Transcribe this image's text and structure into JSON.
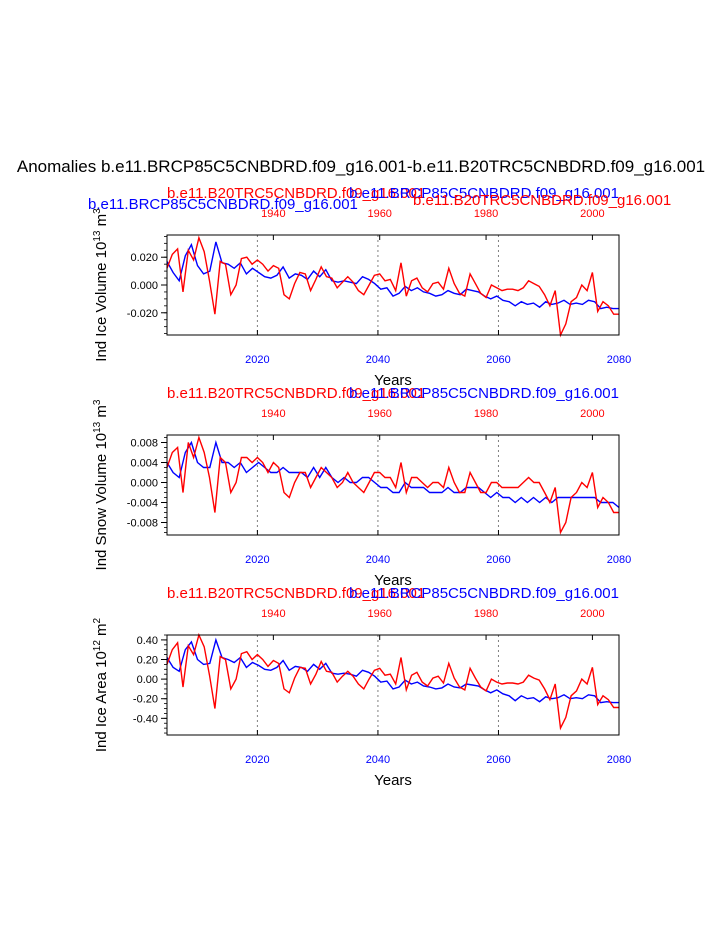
{
  "figure": {
    "main_title": "Anomalies b.e11.BRCP85C5CNBDRD.f09_g16.001-b.e11.B20TRC5CNBDRD.f09_g16.001",
    "colors": {
      "future": "#0000ff",
      "hist": "#ff0000",
      "axis": "#000000",
      "refline": "#808080"
    }
  },
  "chart_data": [
    {
      "type": "line",
      "title_left": "b.e11.BRCP85C5CNBDRD.f09_g16.001",
      "title_red_left": "b.e11.B20TRC5CNBDRD.f09_g16.001",
      "title_blue_right": "b.e11.BRCP85C5CNBDRD.f09_g16.001",
      "title_red_right": "b.e11.B20TRC5CNBDRD.f09_g16.001",
      "ylabel": "Ind Ice Volume 10^13 m^3",
      "ylabel_main": "Ind Ice Volume 10",
      "ylabel_exp": "13",
      "ylabel_unit": "m",
      "ylabel_unit_exp": "3",
      "xlabel": "Years",
      "ylim": [
        -0.036,
        0.036
      ],
      "yticks": [
        -0.02,
        0.0,
        0.02
      ],
      "ytick_labels": [
        "-0.020",
        "0.000",
        "0.020"
      ],
      "y_minor": 0.005,
      "x_future_lim": [
        2005,
        2080
      ],
      "x_future_ticks": [
        "2020",
        "2040",
        "2060",
        "2080"
      ],
      "x_hist_lim": [
        1920,
        2005
      ],
      "x_hist_ticks": [
        "1940",
        "1960",
        "1980",
        "2000"
      ],
      "reflines_future_years": [
        2020,
        2040,
        2060
      ],
      "series": [
        {
          "name": "b.e11.BRCP85C5CNBDRD.f09_g16.001",
          "x_axis": "future",
          "color": "#0000ff",
          "values": [
            0.017,
            0.009,
            0.003,
            0.021,
            0.029,
            0.014,
            0.008,
            0.01,
            0.031,
            0.016,
            0.015,
            0.012,
            0.016,
            0.008,
            0.012,
            0.009,
            0.006,
            0.005,
            0.007,
            0.013,
            0.005,
            0.008,
            0.007,
            0.004,
            0.01,
            0.006,
            0.011,
            0.003,
            0.002,
            0.003,
            0.002,
            0.001,
            0.006,
            0.004,
            0.001,
            -0.003,
            -0.002,
            -0.008,
            -0.006,
            -0.001,
            -0.004,
            -0.002,
            -0.005,
            -0.006,
            -0.008,
            -0.007,
            -0.004,
            -0.006,
            -0.007,
            -0.003,
            -0.004,
            -0.005,
            -0.008,
            -0.01,
            -0.008,
            -0.011,
            -0.012,
            -0.015,
            -0.012,
            -0.014,
            -0.013,
            -0.016,
            -0.012,
            -0.014,
            -0.013,
            -0.011,
            -0.014,
            -0.013,
            -0.014,
            -0.011,
            -0.012,
            -0.017,
            -0.016,
            -0.017,
            -0.017
          ]
        },
        {
          "name": "b.e11.B20TRC5CNBDRD.f09_g16.001",
          "x_axis": "hist",
          "color": "#ff0000",
          "values": [
            0.012,
            0.022,
            0.026,
            -0.005,
            0.025,
            0.018,
            0.034,
            0.024,
            0.003,
            -0.021,
            0.017,
            0.015,
            -0.007,
            0.0,
            0.019,
            0.02,
            0.015,
            0.018,
            0.015,
            0.01,
            0.014,
            0.012,
            -0.007,
            -0.01,
            0.001,
            0.009,
            0.008,
            -0.004,
            0.004,
            0.013,
            0.006,
            0.005,
            -0.002,
            0.002,
            0.006,
            0.002,
            -0.004,
            -0.007,
            0.0,
            0.007,
            0.008,
            0.003,
            0.004,
            -0.004,
            0.016,
            -0.008,
            0.003,
            0.005,
            -0.002,
            -0.005,
            0.001,
            0.002,
            -0.003,
            0.012,
            0.001,
            -0.006,
            -0.008,
            0.008,
            0.001,
            -0.006,
            -0.009,
            0.0,
            -0.002,
            -0.004,
            -0.003,
            -0.003,
            -0.004,
            -0.002,
            0.003,
            0.001,
            -0.001,
            -0.007,
            -0.015,
            -0.004,
            -0.036,
            -0.028,
            -0.012,
            -0.009,
            0.0,
            -0.004,
            0.009,
            -0.019,
            -0.012,
            -0.015,
            -0.021,
            -0.021
          ]
        }
      ]
    },
    {
      "type": "line",
      "title_red_left": "b.e11.B20TRC5CNBDRD.f09_g16.001",
      "title_blue_right": "b.e11.BRCP85C5CNBDRD.f09_g16.001",
      "ylabel": "Ind Snow Volume 10^13 m^3",
      "ylabel_main": "Ind Snow Volume 10",
      "ylabel_exp": "13",
      "ylabel_unit": "m",
      "ylabel_unit_exp": "3",
      "xlabel": "Years",
      "ylim": [
        -0.0105,
        0.0095
      ],
      "yticks": [
        -0.008,
        -0.004,
        0.0,
        0.004,
        0.008
      ],
      "ytick_labels": [
        "-0.008",
        "-0.004",
        "0.000",
        "0.004",
        "0.008"
      ],
      "y_minor": 0.001,
      "x_future_lim": [
        2005,
        2080
      ],
      "x_future_ticks": [
        "2020",
        "2040",
        "2060",
        "2080"
      ],
      "x_hist_lim": [
        1920,
        2005
      ],
      "x_hist_ticks": [
        "1940",
        "1960",
        "1980",
        "2000"
      ],
      "reflines_future_years": [
        2020,
        2040,
        2060
      ],
      "series": [
        {
          "name": "b.e11.BRCP85C5CNBDRD.f09_g16.001",
          "x_axis": "future",
          "color": "#0000ff",
          "values": [
            0.004,
            0.002,
            0.001,
            0.006,
            0.008,
            0.004,
            0.003,
            0.003,
            0.008,
            0.004,
            0.004,
            0.003,
            0.004,
            0.002,
            0.003,
            0.004,
            0.003,
            0.002,
            0.002,
            0.003,
            0.002,
            0.002,
            0.002,
            0.001,
            0.003,
            0.001,
            0.003,
            0.001,
            0.0,
            0.001,
            0.0,
            0.0,
            0.001,
            0.001,
            0.0,
            -0.001,
            -0.001,
            -0.002,
            -0.002,
            0.0,
            -0.001,
            -0.001,
            -0.001,
            -0.002,
            -0.002,
            -0.002,
            -0.001,
            -0.002,
            -0.002,
            -0.001,
            -0.001,
            -0.001,
            -0.002,
            -0.003,
            -0.002,
            -0.003,
            -0.003,
            -0.004,
            -0.003,
            -0.004,
            -0.003,
            -0.004,
            -0.003,
            -0.004,
            -0.003,
            -0.003,
            -0.003,
            -0.003,
            -0.003,
            -0.003,
            -0.003,
            -0.004,
            -0.004,
            -0.004,
            -0.005
          ]
        },
        {
          "name": "b.e11.B20TRC5CNBDRD.f09_g16.001",
          "x_axis": "hist",
          "color": "#ff0000",
          "values": [
            0.003,
            0.006,
            0.007,
            -0.002,
            0.008,
            0.005,
            0.009,
            0.006,
            0.001,
            -0.006,
            0.005,
            0.004,
            -0.002,
            0.0,
            0.005,
            0.005,
            0.004,
            0.005,
            0.004,
            0.002,
            0.004,
            0.003,
            -0.002,
            -0.003,
            0.0,
            0.002,
            0.002,
            -0.001,
            0.001,
            0.003,
            0.002,
            0.001,
            -0.001,
            0.0,
            0.002,
            0.0,
            -0.001,
            -0.002,
            0.0,
            0.002,
            0.002,
            0.001,
            0.001,
            -0.001,
            0.004,
            -0.002,
            0.001,
            0.001,
            0.0,
            -0.001,
            0.0,
            0.0,
            -0.001,
            0.003,
            0.0,
            -0.002,
            -0.002,
            0.002,
            0.0,
            -0.002,
            -0.002,
            0.0,
            0.0,
            -0.001,
            -0.001,
            -0.001,
            -0.001,
            0.0,
            0.001,
            0.0,
            0.0,
            -0.002,
            -0.004,
            -0.001,
            -0.01,
            -0.008,
            -0.003,
            -0.002,
            0.0,
            -0.001,
            0.002,
            -0.005,
            -0.003,
            -0.004,
            -0.006,
            -0.006
          ]
        }
      ]
    },
    {
      "type": "line",
      "title_red_left": "b.e11.B20TRC5CNBDRD.f09_g16.001",
      "title_blue_right": "b.e11.BRCP85C5CNBDRD.f09_g16.001",
      "ylabel": "Ind Ice Area 10^12 m^2",
      "ylabel_main": "Ind Ice Area 10",
      "ylabel_exp": "12",
      "ylabel_unit": "m",
      "ylabel_unit_exp": "2",
      "xlabel": "Years",
      "ylim": [
        -0.57,
        0.45
      ],
      "yticks": [
        -0.4,
        -0.2,
        0.0,
        0.2,
        0.4
      ],
      "ytick_labels": [
        "-0.40",
        "-0.20",
        "0.00",
        "0.20",
        "0.40"
      ],
      "y_minor": 0.05,
      "x_future_lim": [
        2005,
        2080
      ],
      "x_future_ticks": [
        "2020",
        "2040",
        "2060",
        "2080"
      ],
      "x_hist_lim": [
        1920,
        2005
      ],
      "x_hist_ticks": [
        "1940",
        "1960",
        "1980",
        "2000"
      ],
      "reflines_future_years": [
        2020,
        2040,
        2060
      ],
      "series": [
        {
          "name": "b.e11.BRCP85C5CNBDRD.f09_g16.001",
          "x_axis": "future",
          "color": "#0000ff",
          "values": [
            0.22,
            0.12,
            0.08,
            0.3,
            0.38,
            0.2,
            0.15,
            0.16,
            0.4,
            0.22,
            0.2,
            0.17,
            0.22,
            0.12,
            0.17,
            0.14,
            0.1,
            0.09,
            0.12,
            0.19,
            0.09,
            0.13,
            0.12,
            0.08,
            0.15,
            0.1,
            0.16,
            0.06,
            0.05,
            0.06,
            0.05,
            0.03,
            0.09,
            0.07,
            0.03,
            -0.03,
            -0.02,
            -0.1,
            -0.08,
            -0.01,
            -0.05,
            -0.03,
            -0.07,
            -0.08,
            -0.1,
            -0.09,
            -0.05,
            -0.08,
            -0.09,
            -0.05,
            -0.06,
            -0.07,
            -0.11,
            -0.14,
            -0.11,
            -0.15,
            -0.17,
            -0.22,
            -0.17,
            -0.2,
            -0.19,
            -0.23,
            -0.18,
            -0.2,
            -0.19,
            -0.16,
            -0.2,
            -0.19,
            -0.2,
            -0.16,
            -0.17,
            -0.24,
            -0.23,
            -0.24,
            -0.24
          ]
        },
        {
          "name": "b.e11.B20TRC5CNBDRD.f09_g16.001",
          "x_axis": "hist",
          "color": "#ff0000",
          "values": [
            0.15,
            0.3,
            0.37,
            -0.08,
            0.34,
            0.25,
            0.45,
            0.33,
            0.04,
            -0.3,
            0.23,
            0.2,
            -0.1,
            0.0,
            0.26,
            0.28,
            0.2,
            0.25,
            0.2,
            0.13,
            0.19,
            0.16,
            -0.1,
            -0.14,
            0.01,
            0.12,
            0.11,
            -0.05,
            0.05,
            0.18,
            0.08,
            0.07,
            -0.03,
            0.03,
            0.08,
            0.03,
            -0.05,
            -0.1,
            0.0,
            0.09,
            0.11,
            0.04,
            0.05,
            -0.05,
            0.22,
            -0.11,
            0.04,
            0.07,
            -0.03,
            -0.07,
            0.01,
            0.03,
            -0.04,
            0.16,
            0.01,
            -0.08,
            -0.11,
            0.11,
            0.01,
            -0.08,
            -0.12,
            0.0,
            -0.03,
            -0.05,
            -0.04,
            -0.04,
            -0.05,
            -0.03,
            0.04,
            0.01,
            -0.01,
            -0.1,
            -0.21,
            -0.05,
            -0.5,
            -0.39,
            -0.17,
            -0.12,
            0.0,
            -0.05,
            0.12,
            -0.26,
            -0.17,
            -0.21,
            -0.29,
            -0.29
          ]
        }
      ]
    }
  ]
}
